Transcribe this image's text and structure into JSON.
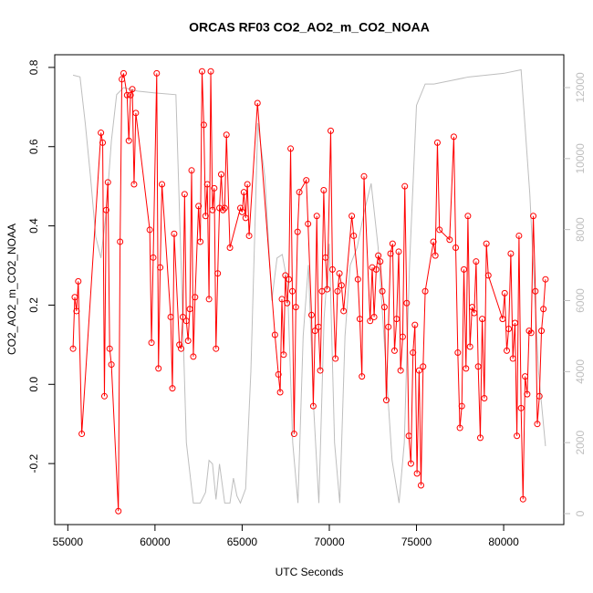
{
  "chart_data": {
    "type": "line",
    "title": "ORCAS RF03 CO2_AO2_m_CO2_NOAA",
    "x_label": "UTC Seconds",
    "y_label": "CO2_AO2_m_CO2_NOAA",
    "xlim": [
      54250,
      83450
    ],
    "xticks": [
      55000,
      60000,
      65000,
      70000,
      75000,
      80000
    ],
    "ylim": [
      -0.354,
      0.832
    ],
    "yticks": [
      -0.2,
      {
        "value": 0,
        "label": "0.0"
      },
      0.2,
      0.4,
      0.6,
      0.8
    ],
    "y2lim": [
      -308,
      12925
    ],
    "y2ticks": [
      0,
      2000,
      4000,
      6000,
      8000,
      10000,
      12000
    ],
    "series": [
      {
        "color": "#bebebe",
        "axis": "y2",
        "x": [
          55300,
          55700,
          56000,
          56300,
          56600,
          56900,
          57200,
          57500,
          57800,
          58200,
          59000,
          60000,
          61200,
          61500,
          61800,
          62200,
          62600,
          62900,
          63100,
          63300,
          63500,
          63700,
          64000,
          64300,
          64500,
          64700,
          64900,
          65200,
          65500,
          65900,
          66300,
          66700,
          67000,
          67300,
          67600,
          67900,
          68200,
          68500,
          68800,
          69100,
          69400,
          69700,
          70000,
          70300,
          70600,
          70900,
          71200,
          71600,
          72000,
          72400,
          72800,
          73200,
          73600,
          74000,
          74300,
          74600,
          75000,
          75500,
          76000,
          77000,
          78000,
          79000,
          80000,
          81000,
          81500,
          82000,
          82400
        ],
        "values": [
          12350,
          12300,
          11000,
          9500,
          7800,
          7200,
          8500,
          10500,
          11800,
          12000,
          11900,
          11850,
          11800,
          7000,
          2000,
          300,
          300,
          600,
          1500,
          1400,
          400,
          1400,
          300,
          300,
          1000,
          500,
          300,
          700,
          4000,
          11000,
          9500,
          6000,
          7200,
          7300,
          6500,
          2000,
          300,
          5000,
          7000,
          3000,
          300,
          5500,
          7600,
          2000,
          300,
          5000,
          7000,
          7500,
          8500,
          9300,
          7500,
          4500,
          1500,
          300,
          2000,
          7000,
          11500,
          12100,
          12100,
          12200,
          12300,
          12350,
          12400,
          12500,
          9000,
          4000,
          1900
        ]
      },
      {
        "color": "#ff0000",
        "x": [
          55300,
          55400,
          55500,
          55600,
          55800,
          56900,
          57000,
          57100,
          57200,
          57300,
          57400,
          57500,
          57900,
          58000,
          58100,
          58200,
          58400,
          58500,
          58600,
          58700,
          58800,
          58900,
          59700,
          59800,
          59900,
          60100,
          60200,
          60300,
          60400,
          60900,
          61000,
          61100,
          61400,
          61500,
          61600,
          61700,
          61800,
          61900,
          62000,
          62100,
          62200,
          62300,
          62500,
          62600,
          62700,
          62800,
          62900,
          63000,
          63100,
          63200,
          63300,
          63400,
          63500,
          63600,
          63700,
          63800,
          63900,
          64000,
          64100,
          64300,
          64900,
          65000,
          65100,
          65200,
          65300,
          65400,
          65880,
          66880,
          67080,
          67180,
          67280,
          67380,
          67480,
          67580,
          67680,
          67780,
          67880,
          67980,
          68080,
          68180,
          68280,
          68680,
          68780,
          68980,
          69080,
          69180,
          69280,
          69380,
          69480,
          69580,
          69680,
          69780,
          69880,
          70080,
          70180,
          70350,
          70470,
          70580,
          70700,
          70820,
          71290,
          71400,
          71640,
          71750,
          71870,
          71990,
          72340,
          72460,
          72570,
          72690,
          72810,
          72920,
          73040,
          73160,
          73270,
          73390,
          73510,
          73630,
          73740,
          73860,
          73980,
          74090,
          74210,
          74330,
          74440,
          74560,
          74680,
          74800,
          74910,
          75030,
          75150,
          75260,
          75380,
          75500,
          75970,
          76080,
          76200,
          76320,
          76900,
          77140,
          77250,
          77370,
          77490,
          77600,
          77720,
          77840,
          77950,
          78070,
          78190,
          78310,
          78420,
          78540,
          78660,
          78770,
          78890,
          79010,
          79120,
          79940,
          80060,
          80180,
          80290,
          80410,
          80530,
          80650,
          80760,
          80880,
          81000,
          81110,
          81230,
          81350,
          81460,
          81580,
          81700,
          81820,
          81930,
          82050,
          82170,
          82280,
          82400
        ],
        "values": [
          0.09,
          0.22,
          0.185,
          0.26,
          -0.125,
          0.635,
          0.61,
          -0.03,
          0.44,
          0.51,
          0.09,
          0.05,
          -0.32,
          0.36,
          0.77,
          0.785,
          0.73,
          0.615,
          0.73,
          0.745,
          0.505,
          0.685,
          0.39,
          0.105,
          0.32,
          0.785,
          0.04,
          0.295,
          0.505,
          0.17,
          -0.01,
          0.38,
          0.1,
          0.09,
          0.17,
          0.48,
          0.16,
          0.11,
          0.19,
          0.54,
          0.07,
          0.22,
          0.45,
          0.36,
          0.79,
          0.655,
          0.425,
          0.505,
          0.215,
          0.79,
          0.44,
          0.495,
          0.09,
          0.28,
          0.445,
          0.53,
          0.44,
          0.445,
          0.63,
          0.345,
          0.445,
          0.435,
          0.485,
          0.42,
          0.505,
          0.375,
          0.71,
          0.125,
          0.025,
          -0.02,
          0.215,
          0.075,
          0.275,
          0.205,
          0.265,
          0.595,
          0.235,
          -0.125,
          0.195,
          0.385,
          0.485,
          0.515,
          0.405,
          0.175,
          -0.055,
          0.135,
          0.425,
          0.145,
          0.035,
          0.235,
          0.49,
          0.32,
          0.24,
          0.64,
          0.29,
          0.065,
          0.235,
          0.28,
          0.25,
          0.185,
          0.425,
          0.375,
          0.265,
          0.165,
          0.02,
          0.525,
          0.16,
          0.295,
          0.17,
          0.29,
          0.325,
          0.31,
          0.235,
          0.195,
          -0.04,
          0.145,
          0.33,
          0.355,
          0.085,
          0.165,
          0.335,
          0.035,
          0.12,
          0.5,
          0.205,
          -0.13,
          -0.2,
          0.08,
          0.15,
          -0.225,
          0.035,
          -0.255,
          0.045,
          0.235,
          0.36,
          0.325,
          0.61,
          0.39,
          0.365,
          0.625,
          0.345,
          0.08,
          -0.11,
          -0.055,
          0.29,
          0.04,
          0.425,
          0.095,
          0.195,
          0.18,
          0.31,
          0.045,
          -0.135,
          0.165,
          -0.035,
          0.355,
          0.275,
          0.165,
          0.23,
          0.085,
          0.14,
          0.33,
          0.065,
          0.155,
          -0.13,
          0.375,
          -0.06,
          -0.29,
          0.02,
          -0.025,
          0.135,
          0.13,
          0.425,
          0.235,
          -0.1,
          -0.03,
          0.135,
          0.19,
          0.265
        ],
        "markers": true
      }
    ]
  }
}
